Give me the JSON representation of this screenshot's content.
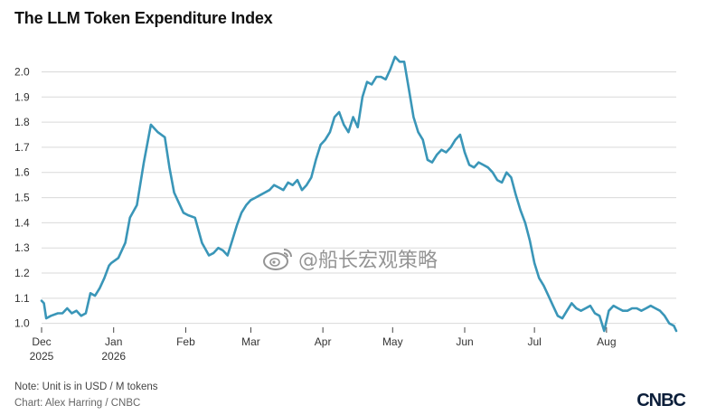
{
  "title": "The LLM Token Expenditure Index",
  "footer": {
    "note": "Note: Unit is in USD / M tokens",
    "credit": "Chart: Alex Harring / CNBC",
    "logo": "CNBC"
  },
  "watermark": {
    "text": "@船长宏观策略",
    "icon": "weibo-icon"
  },
  "colors": {
    "line": "#3a96b8",
    "grid": "#d9d9d9"
  },
  "chart_data": {
    "type": "line",
    "title": "The LLM Token Expenditure Index",
    "xlabel": "",
    "ylabel": "",
    "ylim": [
      0.97,
      2.07
    ],
    "yticks": [
      "1.0",
      "1.1",
      "1.2",
      "1.3",
      "1.4",
      "1.5",
      "1.6",
      "1.7",
      "1.8",
      "1.9",
      "2.0"
    ],
    "xlim": [
      "2025-12-01",
      "2026-08-31"
    ],
    "xticks": [
      {
        "date": "2025-12-01",
        "label": "Dec",
        "sublabel": "2025"
      },
      {
        "date": "2026-01-01",
        "label": "Jan",
        "sublabel": "2026"
      },
      {
        "date": "2026-02-01",
        "label": "Feb",
        "sublabel": ""
      },
      {
        "date": "2026-03-01",
        "label": "Mar",
        "sublabel": ""
      },
      {
        "date": "2026-04-01",
        "label": "Apr",
        "sublabel": ""
      },
      {
        "date": "2026-05-01",
        "label": "May",
        "sublabel": ""
      },
      {
        "date": "2026-06-01",
        "label": "Jun",
        "sublabel": ""
      },
      {
        "date": "2026-07-01",
        "label": "Jul",
        "sublabel": ""
      },
      {
        "date": "2026-08-01",
        "label": "Aug",
        "sublabel": ""
      }
    ],
    "grid": "horizontal",
    "legend": "none",
    "series": [
      {
        "x": [
          "2025-12-01",
          "2025-12-02",
          "2025-12-03",
          "2025-12-05",
          "2025-12-08",
          "2025-12-10",
          "2025-12-12",
          "2025-12-14",
          "2025-12-16",
          "2025-12-18",
          "2025-12-20",
          "2025-12-22",
          "2025-12-24",
          "2025-12-26",
          "2025-12-28",
          "2025-12-30",
          "2025-12-31",
          "2026-01-03",
          "2026-01-06",
          "2026-01-08",
          "2026-01-11",
          "2026-01-14",
          "2026-01-17",
          "2026-01-20",
          "2026-01-23",
          "2026-01-25",
          "2026-01-27",
          "2026-01-29",
          "2026-01-31",
          "2026-02-02",
          "2026-02-05",
          "2026-02-08",
          "2026-02-11",
          "2026-02-13",
          "2026-02-15",
          "2026-02-17",
          "2026-02-19",
          "2026-02-21",
          "2026-02-23",
          "2026-02-25",
          "2026-02-27",
          "2026-03-01",
          "2026-03-03",
          "2026-03-05",
          "2026-03-07",
          "2026-03-09",
          "2026-03-11",
          "2026-03-13",
          "2026-03-15",
          "2026-03-17",
          "2026-03-19",
          "2026-03-21",
          "2026-03-23",
          "2026-03-25",
          "2026-03-27",
          "2026-03-29",
          "2026-03-31",
          "2026-04-02",
          "2026-04-04",
          "2026-04-06",
          "2026-04-08",
          "2026-04-10",
          "2026-04-12",
          "2026-04-14",
          "2026-04-16",
          "2026-04-18",
          "2026-04-20",
          "2026-04-22",
          "2026-04-24",
          "2026-04-26",
          "2026-04-28",
          "2026-04-30",
          "2026-05-02",
          "2026-05-04",
          "2026-05-06",
          "2026-05-08",
          "2026-05-10",
          "2026-05-12",
          "2026-05-14",
          "2026-05-16",
          "2026-05-18",
          "2026-05-20",
          "2026-05-22",
          "2026-05-24",
          "2026-05-26",
          "2026-05-28",
          "2026-05-30",
          "2026-06-01",
          "2026-06-03",
          "2026-06-05",
          "2026-06-07",
          "2026-06-09",
          "2026-06-11",
          "2026-06-13",
          "2026-06-15",
          "2026-06-17",
          "2026-06-19",
          "2026-06-21",
          "2026-06-23",
          "2026-06-25",
          "2026-06-27",
          "2026-06-29",
          "2026-07-01",
          "2026-07-03",
          "2026-07-05",
          "2026-07-07",
          "2026-07-09",
          "2026-07-11",
          "2026-07-13",
          "2026-07-15",
          "2026-07-17",
          "2026-07-19",
          "2026-07-21",
          "2026-07-23",
          "2026-07-25",
          "2026-07-27",
          "2026-07-29",
          "2026-07-31",
          "2026-08-02",
          "2026-08-04",
          "2026-08-06",
          "2026-08-08",
          "2026-08-10",
          "2026-08-12",
          "2026-08-14",
          "2026-08-16",
          "2026-08-18",
          "2026-08-20",
          "2026-08-22",
          "2026-08-24",
          "2026-08-26",
          "2026-08-28",
          "2026-08-30",
          "2026-08-31"
        ],
        "y": [
          1.09,
          1.08,
          1.02,
          1.03,
          1.04,
          1.04,
          1.06,
          1.04,
          1.05,
          1.03,
          1.04,
          1.12,
          1.11,
          1.14,
          1.18,
          1.23,
          1.24,
          1.26,
          1.32,
          1.42,
          1.47,
          1.64,
          1.79,
          1.76,
          1.74,
          1.62,
          1.52,
          1.48,
          1.44,
          1.43,
          1.42,
          1.32,
          1.27,
          1.28,
          1.3,
          1.29,
          1.27,
          1.33,
          1.39,
          1.44,
          1.47,
          1.49,
          1.5,
          1.51,
          1.52,
          1.53,
          1.55,
          1.54,
          1.53,
          1.56,
          1.55,
          1.57,
          1.53,
          1.55,
          1.58,
          1.65,
          1.71,
          1.73,
          1.76,
          1.82,
          1.84,
          1.79,
          1.76,
          1.82,
          1.78,
          1.9,
          1.96,
          1.95,
          1.98,
          1.98,
          1.97,
          2.01,
          2.06,
          2.04,
          2.04,
          1.93,
          1.82,
          1.76,
          1.73,
          1.65,
          1.64,
          1.67,
          1.69,
          1.68,
          1.7,
          1.73,
          1.75,
          1.68,
          1.63,
          1.62,
          1.64,
          1.63,
          1.62,
          1.6,
          1.57,
          1.56,
          1.6,
          1.58,
          1.51,
          1.45,
          1.4,
          1.33,
          1.24,
          1.18,
          1.15,
          1.11,
          1.07,
          1.03,
          1.02,
          1.05,
          1.08,
          1.06,
          1.05,
          1.06,
          1.07,
          1.04,
          1.03,
          0.97,
          1.05,
          1.07,
          1.06,
          1.05,
          1.05,
          1.06,
          1.06,
          1.05,
          1.06,
          1.07,
          1.06,
          1.05,
          1.03,
          1.0,
          0.99,
          0.97
        ]
      }
    ]
  }
}
